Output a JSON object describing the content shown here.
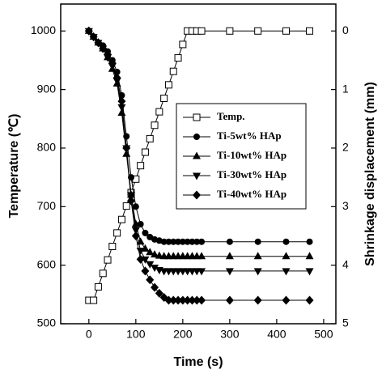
{
  "chart_data": {
    "type": "line",
    "xlabel": "Time (s)",
    "ylabel": "Temperature (℃)",
    "y2label": "Shrinkage displacement (mm)",
    "xlim": [
      -60,
      526
    ],
    "xticks": [
      0,
      100,
      200,
      300,
      400,
      500
    ],
    "ylim": [
      500,
      1046
    ],
    "yticks": [
      500,
      600,
      700,
      800,
      900,
      1000
    ],
    "y2lim": [
      5,
      -0.46
    ],
    "y2ticks": [
      0,
      1,
      2,
      3,
      4,
      5
    ],
    "legend": "upper-right",
    "series": [
      {
        "name": "Temp.",
        "color": "#000000",
        "marker": "square-open",
        "axis": "y",
        "x": [
          0,
          10,
          20,
          30,
          40,
          50,
          60,
          70,
          80,
          90,
          100,
          110,
          120,
          130,
          140,
          150,
          160,
          170,
          180,
          190,
          200,
          210,
          220,
          230,
          240,
          300,
          360,
          420,
          470
        ],
        "values": [
          540,
          540,
          563,
          586,
          609,
          632,
          655,
          678,
          701,
          724,
          747,
          770,
          793,
          816,
          839,
          862,
          885,
          908,
          931,
          954,
          977,
          1000,
          1000,
          1000,
          1000,
          1000,
          1000,
          1000,
          1000
        ]
      },
      {
        "name": "Ti-5wt% HAp",
        "color": "#000000",
        "marker": "circle",
        "axis": "y2",
        "x": [
          0,
          10,
          20,
          30,
          40,
          50,
          60,
          70,
          80,
          90,
          100,
          110,
          120,
          130,
          140,
          150,
          160,
          170,
          180,
          190,
          200,
          210,
          220,
          230,
          240,
          300,
          360,
          420,
          470
        ],
        "values": [
          0,
          0.1,
          0.2,
          0.25,
          0.35,
          0.5,
          0.7,
          1.1,
          1.8,
          2.5,
          3.0,
          3.3,
          3.45,
          3.52,
          3.56,
          3.58,
          3.6,
          3.6,
          3.6,
          3.6,
          3.6,
          3.6,
          3.6,
          3.6,
          3.6,
          3.6,
          3.6,
          3.6,
          3.6
        ]
      },
      {
        "name": "Ti-10wt% HAp",
        "color": "#000000",
        "marker": "triangle-up",
        "axis": "y2",
        "x": [
          0,
          10,
          20,
          30,
          40,
          50,
          60,
          70,
          80,
          90,
          100,
          110,
          120,
          130,
          140,
          150,
          160,
          170,
          180,
          190,
          200,
          210,
          220,
          230,
          240,
          300,
          360,
          420,
          470
        ],
        "values": [
          0,
          0.1,
          0.2,
          0.3,
          0.45,
          0.65,
          0.9,
          1.4,
          2.1,
          2.8,
          3.3,
          3.6,
          3.72,
          3.78,
          3.82,
          3.84,
          3.85,
          3.85,
          3.85,
          3.85,
          3.85,
          3.85,
          3.85,
          3.85,
          3.85,
          3.85,
          3.85,
          3.85,
          3.85
        ]
      },
      {
        "name": "Ti-30wt% HAp",
        "color": "#000000",
        "marker": "triangle-down",
        "axis": "y2",
        "x": [
          0,
          10,
          20,
          30,
          40,
          50,
          60,
          70,
          80,
          90,
          100,
          110,
          120,
          130,
          140,
          150,
          160,
          170,
          180,
          190,
          200,
          210,
          220,
          230,
          240,
          300,
          360,
          420,
          470
        ],
        "values": [
          0,
          0.1,
          0.2,
          0.3,
          0.45,
          0.6,
          0.85,
          1.3,
          2.0,
          2.8,
          3.4,
          3.75,
          3.9,
          3.98,
          4.04,
          4.08,
          4.1,
          4.1,
          4.1,
          4.1,
          4.1,
          4.1,
          4.1,
          4.1,
          4.1,
          4.1,
          4.1,
          4.1,
          4.1
        ]
      },
      {
        "name": "Ti-40wt% HAp",
        "color": "#000000",
        "marker": "diamond",
        "axis": "y2",
        "x": [
          0,
          10,
          20,
          30,
          40,
          50,
          60,
          70,
          80,
          90,
          100,
          110,
          120,
          130,
          140,
          150,
          160,
          170,
          180,
          190,
          200,
          210,
          220,
          230,
          240,
          300,
          360,
          420,
          470
        ],
        "values": [
          0,
          0.1,
          0.2,
          0.3,
          0.4,
          0.55,
          0.8,
          1.2,
          2.0,
          2.9,
          3.5,
          3.9,
          4.1,
          4.25,
          4.38,
          4.48,
          4.55,
          4.6,
          4.6,
          4.6,
          4.6,
          4.6,
          4.6,
          4.6,
          4.6,
          4.6,
          4.6,
          4.6,
          4.6
        ]
      }
    ]
  }
}
